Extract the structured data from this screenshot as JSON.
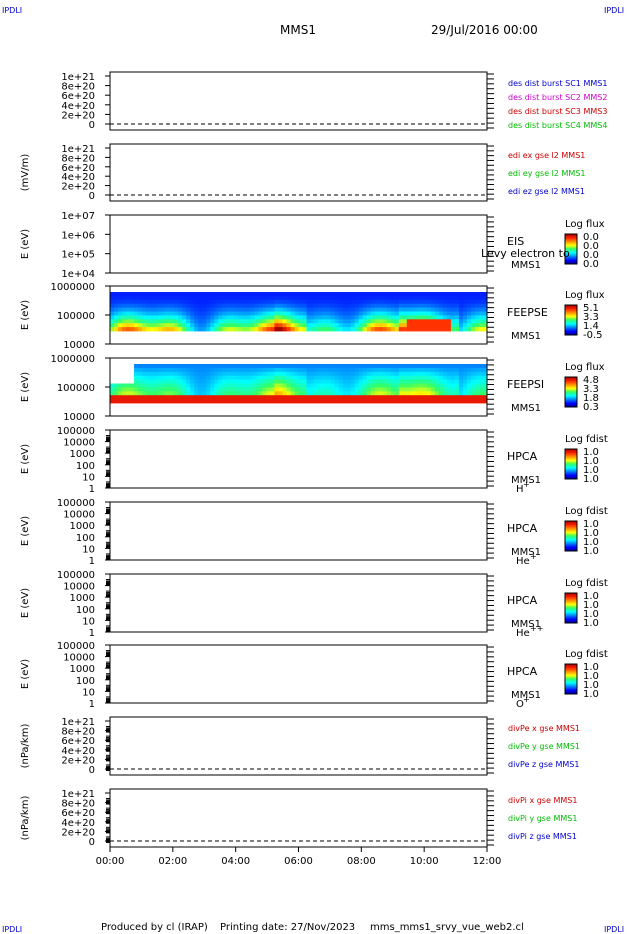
{
  "corners": {
    "tl": "IPDLI",
    "tr": "IPDLI",
    "bl": "IPDLI",
    "br": "IPDLI"
  },
  "header": {
    "spacecraft": "MMS1",
    "date": "29/Jul/2016 00:00"
  },
  "footer": {
    "produced_by": "Produced by cl (IRAP)",
    "printing_date": "Printing date: 27/Nov/2023",
    "filename": "mms_mms1_srvy_vue_web2.cl"
  },
  "x_ticks": [
    "00:00",
    "02:00",
    "04:00",
    "06:00",
    "08:00",
    "10:00",
    "12:00"
  ],
  "colors": {
    "blue": "#0000cc",
    "magenta": "#cc00cc",
    "red": "#cc0000",
    "green": "#00bb00"
  },
  "chart_data": [
    {
      "type": "line",
      "yticks": [
        "1e+21",
        "8e+20",
        "6e+20",
        "4e+20",
        "2e+20",
        "0"
      ],
      "ylabel": "",
      "series": [
        {
          "name": "des dist burst SC1 MMS1",
          "color": "#0000cc"
        },
        {
          "name": "des dist burst SC2 MMS2",
          "color": "#cc00cc"
        },
        {
          "name": "des dist burst SC3 MMS3",
          "color": "#cc0000"
        },
        {
          "name": "des dist burst SC4 MMS4",
          "color": "#00bb00"
        }
      ]
    },
    {
      "type": "line",
      "yticks": [
        "1e+21",
        "8e+20",
        "6e+20",
        "4e+20",
        "2e+20",
        "0"
      ],
      "ylabel": "(mV/m)",
      "series": [
        {
          "name": "edi ex gse l2 MMS1",
          "color": "#cc0000"
        },
        {
          "name": "edi ey gse l2 MMS1",
          "color": "#00bb00"
        },
        {
          "name": "edi ez gse l2 MMS1",
          "color": "#0000cc"
        }
      ]
    },
    {
      "type": "heatmap",
      "yticks": [
        "1e+07",
        "1e+06",
        "1e+05",
        "1e+04"
      ],
      "ylabel": "E (eV)",
      "instrument": "EIS",
      "sc": "MMS1",
      "extra_label": "Levy electron to",
      "colorbar_title": "Log flux",
      "colorbar_ticks": [
        "0.0",
        "0.0",
        "0.0",
        "0.0"
      ]
    },
    {
      "type": "heatmap",
      "yticks": [
        "1000000",
        "100000",
        "10000"
      ],
      "ylabel": "E (eV)",
      "instrument": "FEEPSE",
      "sc": "MMS1",
      "colorbar_title": "Log flux",
      "colorbar_ticks": [
        "5.1",
        "3.3",
        "1.4",
        "-0.5"
      ]
    },
    {
      "type": "heatmap",
      "yticks": [
        "1000000",
        "100000",
        "10000"
      ],
      "ylabel": "E (eV)",
      "instrument": "FEEPSI",
      "sc": "MMS1",
      "colorbar_title": "Log flux",
      "colorbar_ticks": [
        "4.8",
        "3.3",
        "1.8",
        "0.3"
      ]
    },
    {
      "type": "heatmap",
      "yticks": [
        "100000",
        "10000",
        "1000",
        "100",
        "10",
        "1"
      ],
      "ylabel": "E (eV)",
      "instrument": "HPCA",
      "sc": "MMS1",
      "species": "H",
      "species_sup": "+",
      "colorbar_title": "Log fdist",
      "colorbar_ticks": [
        "1.0",
        "1.0",
        "1.0",
        "1.0"
      ]
    },
    {
      "type": "heatmap",
      "yticks": [
        "100000",
        "10000",
        "1000",
        "100",
        "10",
        "1"
      ],
      "ylabel": "E (eV)",
      "instrument": "HPCA",
      "sc": "MMS1",
      "species": "He",
      "species_sup": "+",
      "colorbar_title": "Log fdist",
      "colorbar_ticks": [
        "1.0",
        "1.0",
        "1.0",
        "1.0"
      ]
    },
    {
      "type": "heatmap",
      "yticks": [
        "100000",
        "10000",
        "1000",
        "100",
        "10",
        "1"
      ],
      "ylabel": "E (eV)",
      "instrument": "HPCA",
      "sc": "MMS1",
      "species": "He",
      "species_sup": "++",
      "colorbar_title": "Log fdist",
      "colorbar_ticks": [
        "1.0",
        "1.0",
        "1.0",
        "1.0"
      ]
    },
    {
      "type": "heatmap",
      "yticks": [
        "100000",
        "10000",
        "1000",
        "100",
        "10",
        "1"
      ],
      "ylabel": "E (eV)",
      "instrument": "HPCA",
      "sc": "MMS1",
      "species": "O",
      "species_sup": "+",
      "colorbar_title": "Log fdist",
      "colorbar_ticks": [
        "1.0",
        "1.0",
        "1.0",
        "1.0"
      ]
    },
    {
      "type": "line",
      "yticks": [
        "1e+21",
        "8e+20",
        "6e+20",
        "4e+20",
        "2e+20",
        "0"
      ],
      "ylabel": "(nPa/km)",
      "series": [
        {
          "name": "divPe x gse MMS1",
          "color": "#cc0000"
        },
        {
          "name": "divPe y gse MMS1",
          "color": "#00bb00"
        },
        {
          "name": "divPe z gse MMS1",
          "color": "#0000cc"
        }
      ]
    },
    {
      "type": "line",
      "yticks": [
        "1e+21",
        "8e+20",
        "6e+20",
        "4e+20",
        "2e+20",
        "0"
      ],
      "ylabel": "(nPa/km)",
      "series": [
        {
          "name": "divPi x gse MMS1",
          "color": "#cc0000"
        },
        {
          "name": "divPi y gse MMS1",
          "color": "#00bb00"
        },
        {
          "name": "divPi z gse MMS1",
          "color": "#0000cc"
        }
      ]
    }
  ]
}
